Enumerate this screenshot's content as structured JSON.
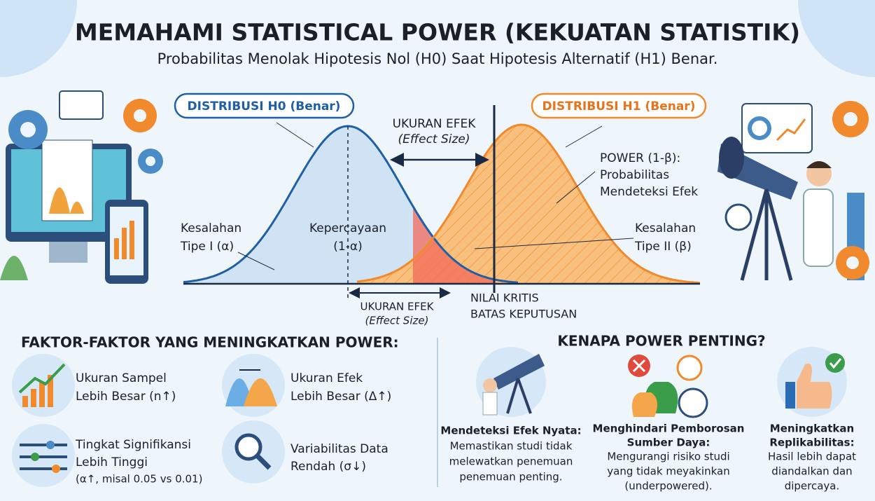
{
  "header": {
    "title": "MEMAHAMI STATISTICAL POWER (KEKUATAN STATISTIK)",
    "subtitle": "Probabilitas Menolak Hipotesis Nol (H0) Saat Hipotesis Alternatif (H1) Benar."
  },
  "diagram": {
    "h0_label": "DISTRIBUSI H0 (Benar)",
    "h1_label": "DISTRIBUSI H1 (Benar)",
    "effect_size_top": [
      "UKURAN EFEK",
      "(Effect Size)"
    ],
    "power": [
      "POWER (1-β):",
      "Probabilitas",
      "Mendeteksi Efek"
    ],
    "type1_error": [
      "Kesalahan",
      "Tipe I (α)"
    ],
    "confidence": [
      "Kepercayaan",
      "(1-α)"
    ],
    "type2_error": [
      "Kesalahan",
      "Tipe II (β)"
    ],
    "effect_size_bottom": [
      "UKURAN EFEK",
      "(Effect Size)"
    ],
    "critical_value": [
      "NILAI KRITIS",
      "BATAS KEPUTUSAN"
    ]
  },
  "factors": {
    "title": "FAKTOR-FAKTOR YANG MENINGKATKAN POWER:",
    "items": [
      [
        "Ukuran Sampel",
        "Lebih Besar (n↑)"
      ],
      [
        "Ukuran Efek",
        "Lebih Besar (Δ↑)"
      ],
      [
        "Tingkat Signifikansi",
        "Lebih Tinggi",
        "(α↑, misal 0.05 vs 0.01)"
      ],
      [
        "Variabilitas Data",
        "Rendah (σ↓)"
      ]
    ]
  },
  "importance": {
    "title": "KENAPA POWER PENTING?",
    "items": [
      {
        "heading": [
          "Mendeteksi Efek Nyata:"
        ],
        "body": [
          "Memastikan studi tidak",
          "melewatkan penemuan",
          "penemuan penting."
        ]
      },
      {
        "heading": [
          "Menghindari Pemborosan",
          "Sumber Daya:"
        ],
        "body": [
          "Mengurangi risiko studi",
          "yang tidak meyakinkan",
          "(underpowered)."
        ]
      },
      {
        "heading": [
          "Meningkatkan",
          "Replikabilitas:"
        ],
        "body": [
          "Hasil lebih dapat",
          "diandalkan dan",
          "dipercaya."
        ]
      }
    ]
  }
}
